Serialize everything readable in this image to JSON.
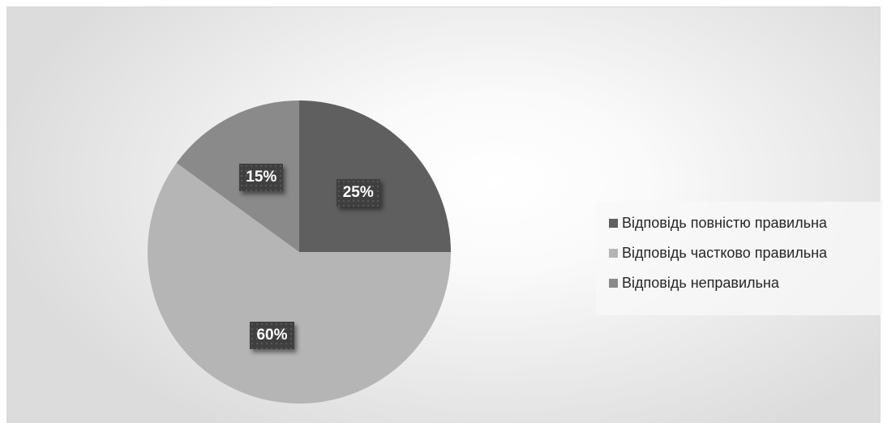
{
  "chart_data": {
    "type": "pie",
    "title": "",
    "categories": [
      "Відповідь повністю правильна",
      "Відповідь частково правильна",
      "Відповідь неправильна"
    ],
    "values": [
      25,
      60,
      15
    ],
    "data_labels": [
      "25%",
      "60%",
      "15%"
    ],
    "colors": [
      "#5f5f5f",
      "#b5b5b5",
      "#8a8a8a"
    ],
    "start_angle_deg": 0,
    "direction": "clockwise",
    "legend_position": "right"
  }
}
